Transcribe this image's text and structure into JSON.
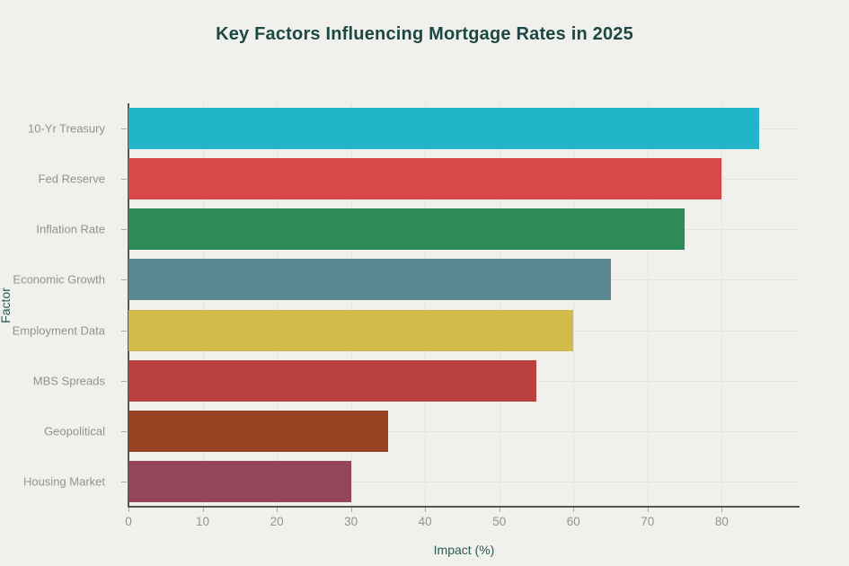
{
  "page": {
    "background_color": "#f0f1ec",
    "title_color": "#1d4742",
    "axis_title_color": "#2c5a52",
    "tick_label_color": "#8f948e",
    "axis_line_color": "#55564f",
    "gridline_color": "#e2e4dd"
  },
  "chart_data": {
    "type": "bar",
    "orientation": "horizontal",
    "title": "Key Factors Influencing Mortgage Rates in 2025",
    "xlabel": "Impact (%)",
    "ylabel": "Factor",
    "categories": [
      "10-Yr Treasury",
      "Fed Reserve",
      "Inflation Rate",
      "Economic Growth",
      "Employment Data",
      "MBS Spreads",
      "Geopolitical",
      "Housing Market"
    ],
    "values": [
      85,
      80,
      75,
      65,
      60,
      55,
      35,
      30
    ],
    "bar_colors": [
      "#22b5c9",
      "#d94848",
      "#2e8b57",
      "#5b8791",
      "#d1bc4a",
      "#b9423e",
      "#964322",
      "#95455a"
    ],
    "xticks": [
      0,
      10,
      20,
      30,
      40,
      50,
      60,
      70,
      80
    ],
    "xlim": [
      0,
      90.5
    ],
    "grid": true,
    "legend": false
  }
}
